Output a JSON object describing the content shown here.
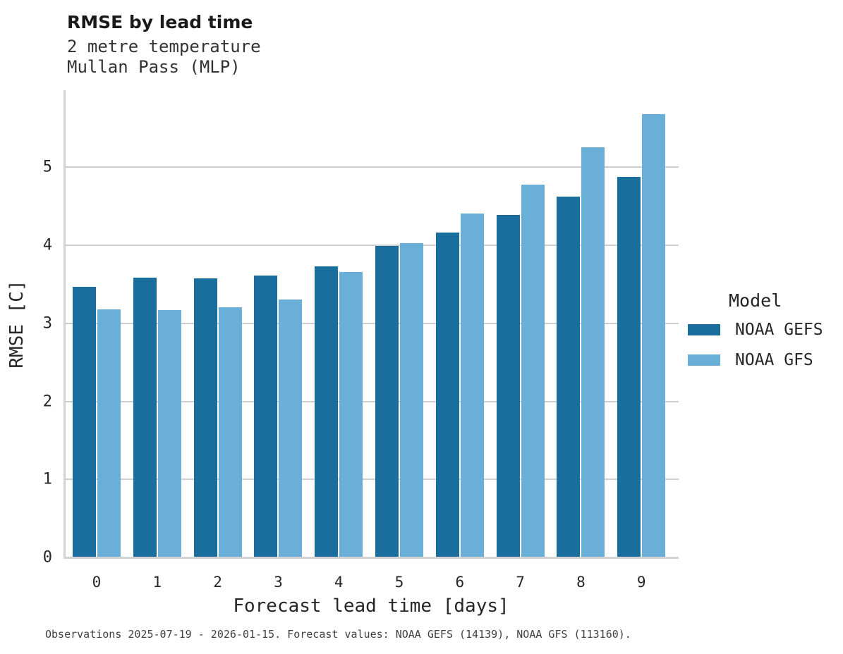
{
  "header": {
    "title": "RMSE by lead time",
    "subtitle1": "2 metre temperature",
    "subtitle2": "Mullan Pass (MLP)"
  },
  "axes": {
    "ylabel": "RMSE [C]",
    "xlabel": "Forecast lead time [days]",
    "yticks": [
      0,
      1,
      2,
      3,
      4,
      5
    ],
    "xticks": [
      "0",
      "1",
      "2",
      "3",
      "4",
      "5",
      "6",
      "7",
      "8",
      "9"
    ]
  },
  "legend": {
    "title": "Model",
    "entries": [
      {
        "label": "NOAA GEFS",
        "color": "#1a6e9e"
      },
      {
        "label": "NOAA GFS",
        "color": "#69afd8"
      }
    ]
  },
  "footer": {
    "caption": "Observations 2025-07-19 - 2026-01-15. Forecast values: NOAA GEFS (14139), NOAA GFS (113160)."
  },
  "colors": {
    "gefs_bar": "#1a6e9e",
    "gfs_bar": "#69afd8",
    "gridline": "#cfcfcf",
    "spine": "#d3d3d3",
    "tick_text": "#262626"
  },
  "chart_data": {
    "type": "bar",
    "title": "RMSE by lead time",
    "subtitle": [
      "2 metre temperature",
      "Mullan Pass (MLP)"
    ],
    "categories": [
      0,
      1,
      2,
      3,
      4,
      5,
      6,
      7,
      8,
      9
    ],
    "series": [
      {
        "name": "NOAA GEFS",
        "color": "#1a6e9e",
        "values": [
          3.46,
          3.58,
          3.57,
          3.6,
          3.72,
          3.98,
          4.15,
          4.38,
          4.61,
          4.87
        ]
      },
      {
        "name": "NOAA GFS",
        "color": "#69afd8",
        "values": [
          3.17,
          3.16,
          3.2,
          3.3,
          3.65,
          4.02,
          4.4,
          4.77,
          5.25,
          5.67
        ]
      }
    ],
    "xlabel": "Forecast lead time [days]",
    "ylabel": "RMSE [C]",
    "ylim": [
      0,
      6.0
    ],
    "yticks": [
      0,
      1,
      2,
      3,
      4,
      5
    ],
    "grid": "horizontal",
    "legend_title": "Model",
    "legend_position": "right-outside",
    "caption": "Observations 2025-07-19 - 2026-01-15. Forecast values: NOAA GEFS (14139), NOAA GFS (113160)."
  }
}
